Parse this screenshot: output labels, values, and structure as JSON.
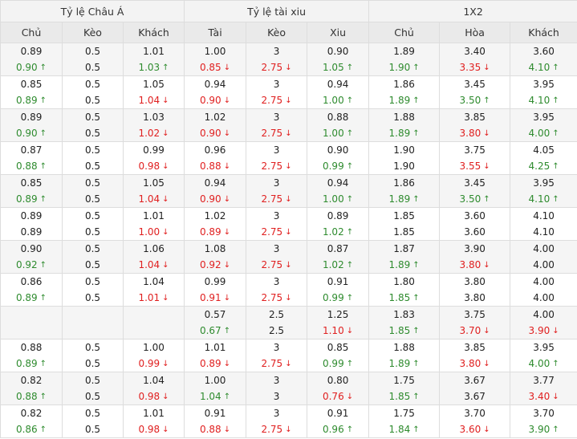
{
  "groups": [
    "Tỷ lệ Châu Á",
    "Tỷ lệ tài xiu",
    "1X2"
  ],
  "columns": [
    "Chủ",
    "Kèo",
    "Khách",
    "Tài",
    "Kèo",
    "Xiu",
    "Chủ",
    "Hòa",
    "Khách"
  ],
  "colors": {
    "up": "#2e8b2e",
    "down": "#e02020",
    "header_bg": "#f3f3f3",
    "subheader_bg": "#eaeaea",
    "stripe_bg": "#f5f5f5",
    "border": "#dddddd"
  },
  "rows": [
    [
      [
        "0.89",
        "0.90",
        "up"
      ],
      [
        "0.5",
        "0.5",
        ""
      ],
      [
        "1.01",
        "1.03",
        "up"
      ],
      [
        "1.00",
        "0.85",
        "down"
      ],
      [
        "3",
        "2.75",
        "down"
      ],
      [
        "0.90",
        "1.05",
        "up"
      ],
      [
        "1.89",
        "1.90",
        "up"
      ],
      [
        "3.40",
        "3.35",
        "down"
      ],
      [
        "3.60",
        "4.10",
        "up"
      ]
    ],
    [
      [
        "0.85",
        "0.89",
        "up"
      ],
      [
        "0.5",
        "0.5",
        ""
      ],
      [
        "1.05",
        "1.04",
        "down"
      ],
      [
        "0.94",
        "0.90",
        "down"
      ],
      [
        "3",
        "2.75",
        "down"
      ],
      [
        "0.94",
        "1.00",
        "up"
      ],
      [
        "1.86",
        "1.89",
        "up"
      ],
      [
        "3.45",
        "3.50",
        "up"
      ],
      [
        "3.95",
        "4.10",
        "up"
      ]
    ],
    [
      [
        "0.89",
        "0.90",
        "up"
      ],
      [
        "0.5",
        "0.5",
        ""
      ],
      [
        "1.03",
        "1.02",
        "down"
      ],
      [
        "1.02",
        "0.90",
        "down"
      ],
      [
        "3",
        "2.75",
        "down"
      ],
      [
        "0.88",
        "1.00",
        "up"
      ],
      [
        "1.88",
        "1.89",
        "up"
      ],
      [
        "3.85",
        "3.80",
        "down"
      ],
      [
        "3.95",
        "4.00",
        "up"
      ]
    ],
    [
      [
        "0.87",
        "0.88",
        "up"
      ],
      [
        "0.5",
        "0.5",
        ""
      ],
      [
        "0.99",
        "0.98",
        "down"
      ],
      [
        "0.96",
        "0.88",
        "down"
      ],
      [
        "3",
        "2.75",
        "down"
      ],
      [
        "0.90",
        "0.99",
        "up"
      ],
      [
        "1.90",
        "1.90",
        ""
      ],
      [
        "3.75",
        "3.55",
        "down"
      ],
      [
        "4.05",
        "4.25",
        "up"
      ]
    ],
    [
      [
        "0.85",
        "0.89",
        "up"
      ],
      [
        "0.5",
        "0.5",
        ""
      ],
      [
        "1.05",
        "1.04",
        "down"
      ],
      [
        "0.94",
        "0.90",
        "down"
      ],
      [
        "3",
        "2.75",
        "down"
      ],
      [
        "0.94",
        "1.00",
        "up"
      ],
      [
        "1.86",
        "1.89",
        "up"
      ],
      [
        "3.45",
        "3.50",
        "up"
      ],
      [
        "3.95",
        "4.10",
        "up"
      ]
    ],
    [
      [
        "0.89",
        "0.89",
        ""
      ],
      [
        "0.5",
        "0.5",
        ""
      ],
      [
        "1.01",
        "1.00",
        "down"
      ],
      [
        "1.02",
        "0.89",
        "down"
      ],
      [
        "3",
        "2.75",
        "down"
      ],
      [
        "0.89",
        "1.02",
        "up"
      ],
      [
        "1.85",
        "1.85",
        ""
      ],
      [
        "3.60",
        "3.60",
        ""
      ],
      [
        "4.10",
        "4.10",
        ""
      ]
    ],
    [
      [
        "0.90",
        "0.92",
        "up"
      ],
      [
        "0.5",
        "0.5",
        ""
      ],
      [
        "1.06",
        "1.04",
        "down"
      ],
      [
        "1.08",
        "0.92",
        "down"
      ],
      [
        "3",
        "2.75",
        "down"
      ],
      [
        "0.87",
        "1.02",
        "up"
      ],
      [
        "1.87",
        "1.89",
        "up"
      ],
      [
        "3.90",
        "3.80",
        "down"
      ],
      [
        "4.00",
        "4.00",
        ""
      ]
    ],
    [
      [
        "0.86",
        "0.89",
        "up"
      ],
      [
        "0.5",
        "0.5",
        ""
      ],
      [
        "1.04",
        "1.01",
        "down"
      ],
      [
        "0.99",
        "0.91",
        "down"
      ],
      [
        "3",
        "2.75",
        "down"
      ],
      [
        "0.91",
        "0.99",
        "up"
      ],
      [
        "1.80",
        "1.85",
        "up"
      ],
      [
        "3.80",
        "3.80",
        ""
      ],
      [
        "4.00",
        "4.00",
        ""
      ]
    ],
    [
      [
        "",
        "",
        ""
      ],
      [
        "",
        "",
        ""
      ],
      [
        "",
        "",
        ""
      ],
      [
        "0.57",
        "0.67",
        "up"
      ],
      [
        "2.5",
        "2.5",
        ""
      ],
      [
        "1.25",
        "1.10",
        "down"
      ],
      [
        "1.83",
        "1.85",
        "up"
      ],
      [
        "3.75",
        "3.70",
        "down"
      ],
      [
        "4.00",
        "3.90",
        "down"
      ]
    ],
    [
      [
        "0.88",
        "0.89",
        "up"
      ],
      [
        "0.5",
        "0.5",
        ""
      ],
      [
        "1.00",
        "0.99",
        "down"
      ],
      [
        "1.01",
        "0.89",
        "down"
      ],
      [
        "3",
        "2.75",
        "down"
      ],
      [
        "0.85",
        "0.99",
        "up"
      ],
      [
        "1.88",
        "1.89",
        "up"
      ],
      [
        "3.85",
        "3.80",
        "down"
      ],
      [
        "3.95",
        "4.00",
        "up"
      ]
    ],
    [
      [
        "0.82",
        "0.88",
        "up"
      ],
      [
        "0.5",
        "0.5",
        ""
      ],
      [
        "1.04",
        "0.98",
        "down"
      ],
      [
        "1.00",
        "1.04",
        "up"
      ],
      [
        "3",
        "3",
        ""
      ],
      [
        "0.80",
        "0.76",
        "down"
      ],
      [
        "1.75",
        "1.85",
        "up"
      ],
      [
        "3.67",
        "3.67",
        ""
      ],
      [
        "3.77",
        "3.40",
        "down"
      ]
    ],
    [
      [
        "0.82",
        "0.86",
        "up"
      ],
      [
        "0.5",
        "0.5",
        ""
      ],
      [
        "1.01",
        "0.98",
        "down"
      ],
      [
        "0.91",
        "0.88",
        "down"
      ],
      [
        "3",
        "2.75",
        "down"
      ],
      [
        "0.91",
        "0.96",
        "up"
      ],
      [
        "1.75",
        "1.84",
        "up"
      ],
      [
        "3.70",
        "3.60",
        "down"
      ],
      [
        "3.70",
        "3.90",
        "up"
      ]
    ]
  ]
}
